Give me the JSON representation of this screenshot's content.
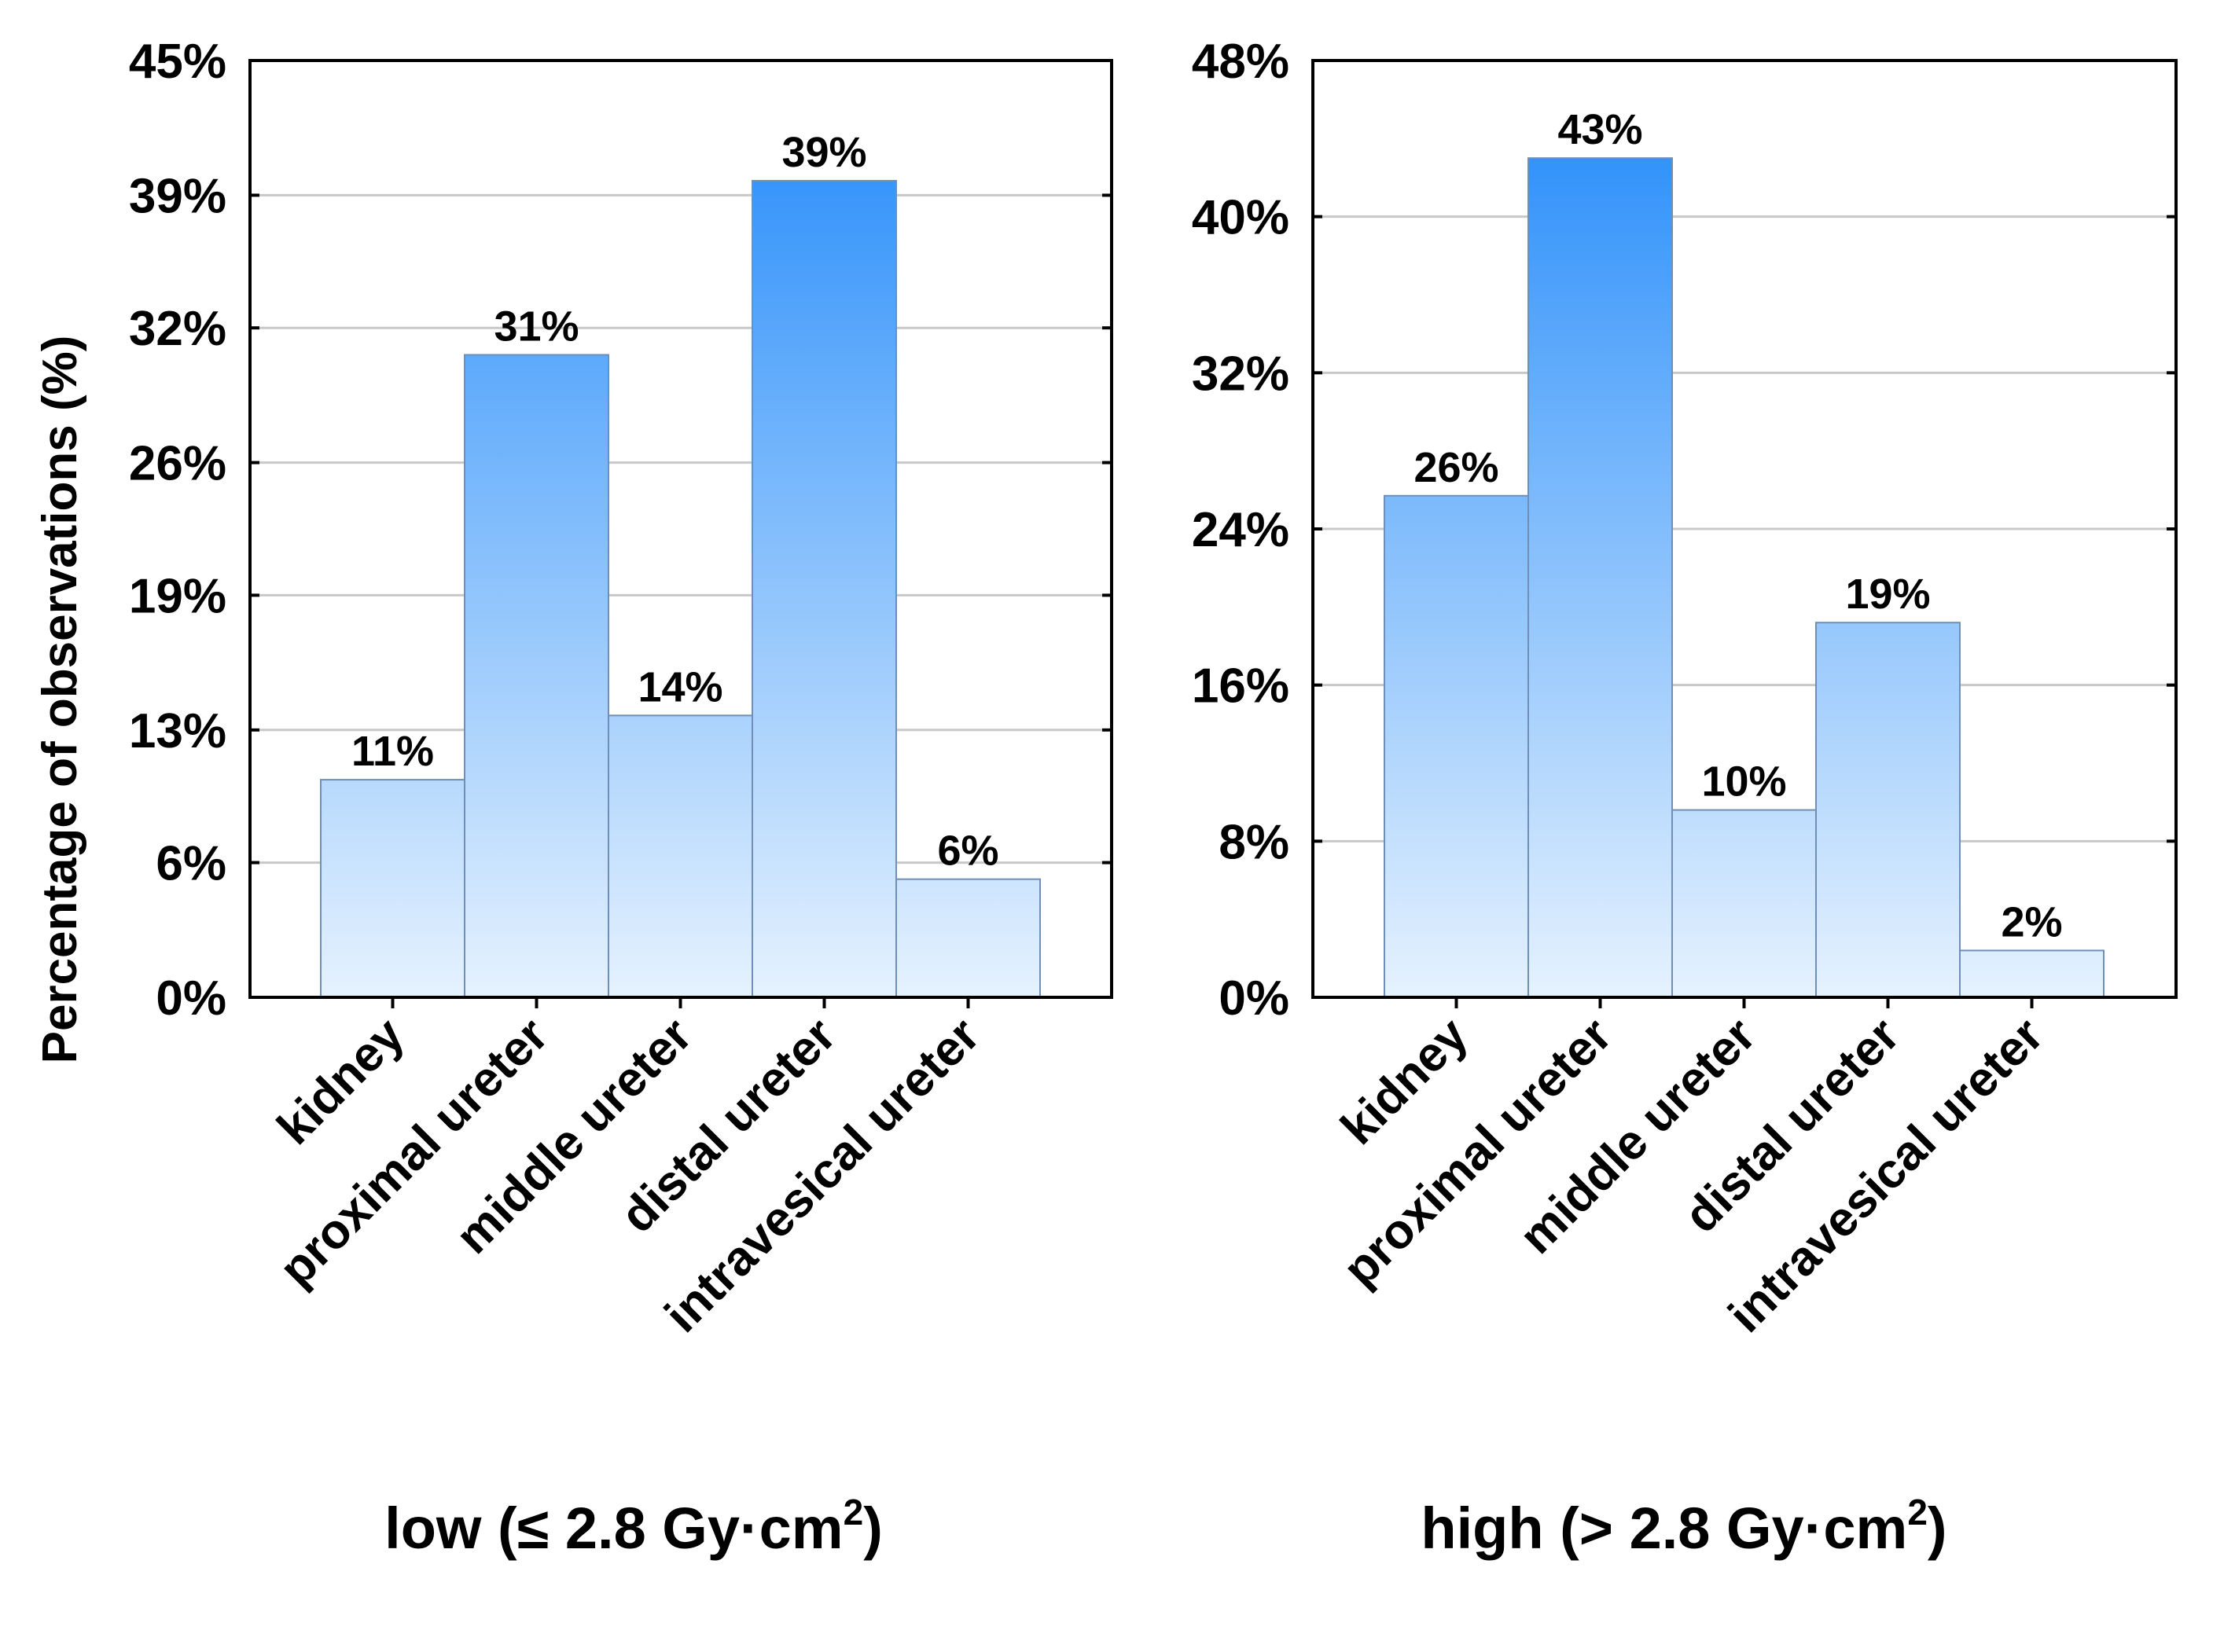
{
  "y_axis_title": "Percentage of observations (%)",
  "chart_data": [
    {
      "type": "bar",
      "subtitle_main": "low (≤ 2.8 Gy·cm",
      "subtitle_sup": "2",
      "subtitle_end": ")",
      "categories": [
        "kidney",
        "proximal ureter",
        "middle ureter",
        "distal ureter",
        "intravesical ureter"
      ],
      "values": [
        10.5,
        31,
        13.6,
        39.4,
        5.7
      ],
      "data_labels": [
        "11%",
        "31%",
        "14%",
        "39%",
        "6%"
      ],
      "yticks": [
        0,
        6.5,
        12.9,
        19.4,
        25.8,
        32.3,
        38.7,
        45.2
      ],
      "ytick_labels": [
        "0%",
        "6%",
        "13%",
        "19%",
        "26%",
        "32%",
        "39%",
        "45%"
      ],
      "ylim": [
        0,
        45.2
      ],
      "ylabel": "Percentage of observations (%)",
      "grid": true
    },
    {
      "type": "bar",
      "subtitle_main": "high (> 2.8 Gy·cm",
      "subtitle_sup": "2",
      "subtitle_end": ")",
      "categories": [
        "kidney",
        "proximal ureter",
        "middle ureter",
        "distal ureter",
        "intravesical ureter"
      ],
      "values": [
        25.7,
        43,
        9.6,
        19.2,
        2.4
      ],
      "data_labels": [
        "26%",
        "43%",
        "10%",
        "19%",
        "2%"
      ],
      "yticks": [
        0,
        8,
        16,
        24,
        32,
        40,
        48
      ],
      "ytick_labels": [
        "0%",
        "8%",
        "16%",
        "24%",
        "32%",
        "40%",
        "48%"
      ],
      "ylim": [
        0,
        48
      ],
      "ylabel": "",
      "grid": true
    }
  ],
  "colors": {
    "bar_top": "#1e88fa",
    "bar_bottom": "#e6f2fe",
    "grid": "#c8c8c8"
  }
}
